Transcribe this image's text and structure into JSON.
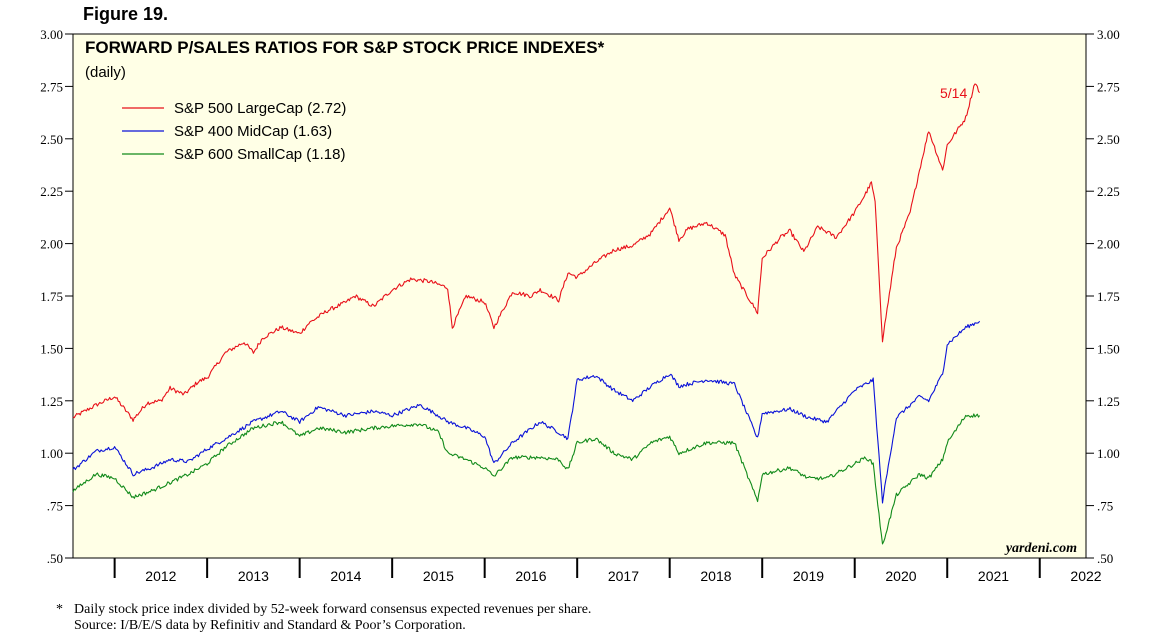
{
  "figure_label": "Figure 19.",
  "footnote": {
    "marker": "*",
    "note": "Daily stock price index divided by 52-week forward consensus expected revenues per share.",
    "source": "Source: I/B/E/S data by Refinitiv and Standard & Poor’s Corporation."
  },
  "colors": {
    "plot_background": "#ffffe6",
    "large_cap": "#e8111a",
    "mid_cap": "#0a12d8",
    "small_cap": "#118a1a"
  },
  "chart_data": {
    "type": "line",
    "title": "FORWARD P/SALES RATIOS FOR S&P STOCK PRICE INDEXES*",
    "subtitle": "(daily)",
    "watermark": "yardeni.com",
    "annotation": "5/14",
    "legend_position": "top-left",
    "grid": false,
    "xlim": [
      2011.55,
      2022.5
    ],
    "ylim": [
      0.5,
      3.0
    ],
    "x_tick_labels": [
      "2012",
      "2013",
      "2014",
      "2015",
      "2016",
      "2017",
      "2018",
      "2019",
      "2020",
      "2021",
      "2022"
    ],
    "y_tick_labels": [
      ".50",
      ".75",
      "1.00",
      "1.25",
      "1.50",
      "1.75",
      "2.00",
      "2.25",
      "2.50",
      "2.75",
      "3.00"
    ],
    "y_tick_values": [
      0.5,
      0.75,
      1.0,
      1.25,
      1.5,
      1.75,
      2.0,
      2.25,
      2.5,
      2.75,
      3.0
    ],
    "series": [
      {
        "name": "S&P 500 LargeCap (2.72)",
        "color": "#e8111a",
        "x": [
          2011.55,
          2011.8,
          2012.0,
          2012.2,
          2012.35,
          2012.5,
          2012.6,
          2012.75,
          2012.9,
          2013.0,
          2013.2,
          2013.4,
          2013.5,
          2013.6,
          2013.8,
          2014.0,
          2014.1,
          2014.3,
          2014.5,
          2014.6,
          2014.8,
          2015.0,
          2015.2,
          2015.4,
          2015.6,
          2015.65,
          2015.8,
          2016.0,
          2016.1,
          2016.3,
          2016.5,
          2016.6,
          2016.8,
          2016.9,
          2017.0,
          2017.2,
          2017.4,
          2017.6,
          2017.8,
          2018.0,
          2018.1,
          2018.2,
          2018.4,
          2018.6,
          2018.7,
          2018.95,
          2019.0,
          2019.2,
          2019.3,
          2019.45,
          2019.6,
          2019.8,
          2020.0,
          2020.12,
          2020.18,
          2020.22,
          2020.3,
          2020.45,
          2020.6,
          2020.7,
          2020.8,
          2020.95,
          2021.0,
          2021.2,
          2021.3,
          2021.35
        ],
        "values": [
          1.17,
          1.23,
          1.27,
          1.16,
          1.24,
          1.25,
          1.31,
          1.28,
          1.34,
          1.36,
          1.48,
          1.53,
          1.48,
          1.55,
          1.6,
          1.57,
          1.62,
          1.68,
          1.72,
          1.75,
          1.7,
          1.78,
          1.83,
          1.82,
          1.79,
          1.6,
          1.75,
          1.72,
          1.6,
          1.77,
          1.75,
          1.78,
          1.73,
          1.86,
          1.84,
          1.91,
          1.97,
          1.99,
          2.05,
          2.17,
          2.02,
          2.07,
          2.1,
          2.04,
          1.85,
          1.67,
          1.93,
          2.03,
          2.06,
          1.96,
          2.08,
          2.03,
          2.15,
          2.24,
          2.29,
          2.2,
          1.54,
          1.98,
          2.15,
          2.35,
          2.54,
          2.35,
          2.47,
          2.6,
          2.77,
          2.72
        ]
      },
      {
        "name": "S&P 400 MidCap (1.63)",
        "color": "#0a12d8",
        "x": [
          2011.55,
          2011.8,
          2012.0,
          2012.2,
          2012.4,
          2012.6,
          2012.8,
          2013.0,
          2013.2,
          2013.5,
          2013.8,
          2014.0,
          2014.2,
          2014.5,
          2014.8,
          2015.0,
          2015.3,
          2015.5,
          2015.6,
          2015.8,
          2016.0,
          2016.1,
          2016.3,
          2016.6,
          2016.8,
          2016.9,
          2017.0,
          2017.2,
          2017.4,
          2017.6,
          2017.8,
          2018.0,
          2018.1,
          2018.4,
          2018.7,
          2018.95,
          2019.0,
          2019.3,
          2019.5,
          2019.7,
          2020.0,
          2020.12,
          2020.2,
          2020.3,
          2020.45,
          2020.7,
          2020.8,
          2020.95,
          2021.0,
          2021.2,
          2021.35
        ],
        "values": [
          0.92,
          1.01,
          1.03,
          0.9,
          0.93,
          0.97,
          0.96,
          1.02,
          1.07,
          1.15,
          1.2,
          1.15,
          1.22,
          1.18,
          1.2,
          1.18,
          1.23,
          1.18,
          1.15,
          1.12,
          1.08,
          0.95,
          1.05,
          1.15,
          1.1,
          1.07,
          1.35,
          1.37,
          1.3,
          1.25,
          1.32,
          1.38,
          1.32,
          1.35,
          1.33,
          1.07,
          1.19,
          1.21,
          1.17,
          1.15,
          1.3,
          1.33,
          1.35,
          0.77,
          1.17,
          1.27,
          1.25,
          1.38,
          1.52,
          1.6,
          1.63
        ]
      },
      {
        "name": "S&P 600 SmallCap (1.18)",
        "color": "#118a1a",
        "x": [
          2011.55,
          2011.8,
          2012.0,
          2012.2,
          2012.4,
          2012.6,
          2012.8,
          2013.0,
          2013.2,
          2013.5,
          2013.8,
          2014.0,
          2014.2,
          2014.5,
          2014.8,
          2015.0,
          2015.3,
          2015.5,
          2015.6,
          2015.8,
          2016.0,
          2016.1,
          2016.3,
          2016.6,
          2016.8,
          2016.9,
          2017.0,
          2017.2,
          2017.4,
          2017.6,
          2017.8,
          2018.0,
          2018.1,
          2018.4,
          2018.7,
          2018.95,
          2019.0,
          2019.3,
          2019.5,
          2019.7,
          2020.0,
          2020.12,
          2020.2,
          2020.3,
          2020.45,
          2020.7,
          2020.8,
          2020.95,
          2021.0,
          2021.2,
          2021.35
        ],
        "values": [
          0.82,
          0.9,
          0.88,
          0.79,
          0.82,
          0.86,
          0.9,
          0.95,
          1.03,
          1.12,
          1.15,
          1.08,
          1.12,
          1.1,
          1.12,
          1.13,
          1.14,
          1.1,
          1.0,
          0.97,
          0.93,
          0.89,
          0.98,
          0.98,
          0.97,
          0.92,
          1.05,
          1.07,
          1.0,
          0.97,
          1.05,
          1.08,
          1.0,
          1.05,
          1.05,
          0.77,
          0.9,
          0.93,
          0.88,
          0.88,
          0.95,
          0.98,
          0.95,
          0.56,
          0.8,
          0.9,
          0.88,
          0.97,
          1.05,
          1.18,
          1.18
        ]
      }
    ]
  }
}
